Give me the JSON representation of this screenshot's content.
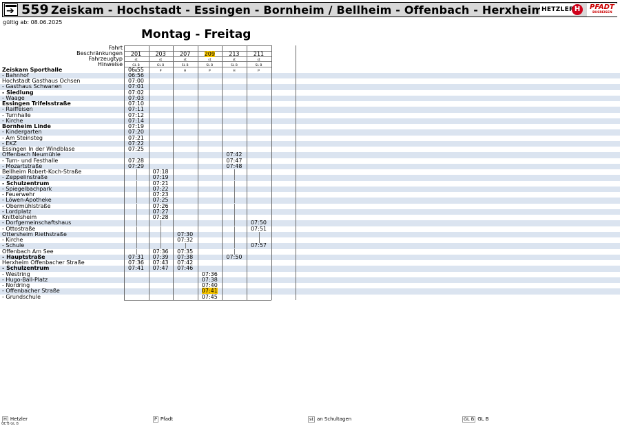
{
  "header": {
    "bus_icon": "bus-arrow-icon",
    "line_number": "559",
    "route": "Zeiskam - Hochstadt - Essingen - Bornheim / Bellheim - Offenbach - Herxheim",
    "logo_hetzler": "HETZLER",
    "logo_h": "H",
    "logo_pfadt": "PFADT",
    "logo_pfadt_sub": "BUSREISEN"
  },
  "valid_from": "gültig ab: 08.06.2025",
  "day_title": "Montag - Freitag",
  "row_labels": {
    "trip": "Fahrt",
    "restrictions": "Beschränkungen",
    "vehicle": "Fahrzeugtyp",
    "notes": "Hinweise"
  },
  "trips": [
    {
      "number": "201",
      "restriction": "st",
      "vehicle": "GL B",
      "note": "H",
      "highlight": false
    },
    {
      "number": "203",
      "restriction": "st",
      "vehicle": "GL B",
      "note": "P",
      "highlight": false
    },
    {
      "number": "207",
      "restriction": "st",
      "vehicle": "SL B",
      "note": "H",
      "highlight": false
    },
    {
      "number": "209",
      "restriction": "st",
      "vehicle": "SL B",
      "note": "P",
      "highlight": true
    },
    {
      "number": "213",
      "restriction": "st",
      "vehicle": "SL B",
      "note": "H",
      "highlight": false
    },
    {
      "number": "211",
      "restriction": "st",
      "vehicle": "SL B",
      "note": "P",
      "highlight": false
    }
  ],
  "stops": [
    {
      "name": "Zeiskam Sporthalle",
      "bold": true,
      "times": [
        "06:55",
        "",
        "",
        "",
        "",
        ""
      ]
    },
    {
      "name": "- Bahnhof",
      "bold": false,
      "times": [
        "06:56",
        "",
        "",
        "",
        "",
        ""
      ]
    },
    {
      "name": "Hochstadt Gasthaus Ochsen",
      "bold": false,
      "times": [
        "07:00",
        "",
        "",
        "",
        "",
        ""
      ]
    },
    {
      "name": "- Gasthaus Schwanen",
      "bold": false,
      "times": [
        "07:01",
        "",
        "",
        "",
        "",
        ""
      ]
    },
    {
      "name": "- Siedlung",
      "bold": true,
      "times": [
        "07:02",
        "",
        "",
        "",
        "",
        ""
      ]
    },
    {
      "name": "- Waage",
      "bold": false,
      "times": [
        "07:03",
        "",
        "",
        "",
        "",
        ""
      ]
    },
    {
      "name": "Essingen Trifelsstraße",
      "bold": true,
      "times": [
        "07:10",
        "",
        "",
        "",
        "",
        ""
      ]
    },
    {
      "name": "- Raiffeisen",
      "bold": false,
      "times": [
        "07:11",
        "",
        "",
        "",
        "",
        ""
      ]
    },
    {
      "name": "- Turnhalle",
      "bold": false,
      "times": [
        "07:12",
        "",
        "",
        "",
        "",
        ""
      ]
    },
    {
      "name": "- Kirche",
      "bold": false,
      "times": [
        "07:14",
        "",
        "",
        "",
        "",
        ""
      ]
    },
    {
      "name": "Bornheim Linde",
      "bold": true,
      "times": [
        "07:19",
        "",
        "",
        "",
        "",
        ""
      ]
    },
    {
      "name": "- Kindergarten",
      "bold": false,
      "times": [
        "07:20",
        "",
        "",
        "",
        "",
        ""
      ]
    },
    {
      "name": "- Am Steinsteg",
      "bold": false,
      "times": [
        "07:21",
        "",
        "",
        "",
        "",
        ""
      ]
    },
    {
      "name": "- EKZ",
      "bold": false,
      "times": [
        "07:22",
        "",
        "",
        "",
        "",
        ""
      ]
    },
    {
      "name": "Essingen In der Windblase",
      "bold": false,
      "times": [
        "07:25",
        "",
        "",
        "",
        "",
        ""
      ]
    },
    {
      "name": "Offenbach Neumühle",
      "bold": false,
      "times": [
        "",
        "",
        "",
        "",
        "07:42",
        ""
      ]
    },
    {
      "name": "- Turn- und Festhalle",
      "bold": false,
      "times": [
        "07:28",
        "",
        "",
        "",
        "07:47",
        ""
      ]
    },
    {
      "name": "- Mozartstraße",
      "bold": false,
      "times": [
        "07:29",
        "",
        "",
        "",
        "07:48",
        ""
      ]
    },
    {
      "name": "Bellheim Robert-Koch-Straße",
      "bold": false,
      "times": [
        "|",
        "07:18",
        "",
        "",
        "|",
        ""
      ]
    },
    {
      "name": "- Zeppelinstraße",
      "bold": false,
      "times": [
        "|",
        "07:19",
        "",
        "",
        "|",
        ""
      ]
    },
    {
      "name": "- Schulzentrum",
      "bold": true,
      "times": [
        "|",
        "07:21",
        "",
        "",
        "|",
        ""
      ]
    },
    {
      "name": "- Spiegelbachpark",
      "bold": false,
      "times": [
        "|",
        "07:22",
        "",
        "",
        "|",
        ""
      ]
    },
    {
      "name": "- Feuerwehr",
      "bold": false,
      "times": [
        "|",
        "07:23",
        "",
        "",
        "|",
        ""
      ]
    },
    {
      "name": "- Löwen-Apotheke",
      "bold": false,
      "times": [
        "|",
        "07:25",
        "",
        "",
        "|",
        ""
      ]
    },
    {
      "name": "- Obermühlstraße",
      "bold": false,
      "times": [
        "|",
        "07:26",
        "",
        "",
        "|",
        ""
      ]
    },
    {
      "name": "- Lordplatz",
      "bold": false,
      "times": [
        "|",
        "07:27",
        "",
        "",
        "|",
        ""
      ]
    },
    {
      "name": "Knittelsheim",
      "bold": false,
      "times": [
        "|",
        "07:28",
        "",
        "",
        "|",
        ""
      ]
    },
    {
      "name": "- Dorfgemeinschaftshaus",
      "bold": false,
      "times": [
        "|",
        "|",
        "",
        "",
        "|",
        "07:50"
      ]
    },
    {
      "name": "- Ottostraße",
      "bold": false,
      "times": [
        "|",
        "|",
        "",
        "",
        "|",
        "07:51"
      ]
    },
    {
      "name": "Ottersheim Riethstraße",
      "bold": false,
      "times": [
        "|",
        "|",
        "07:30",
        "",
        "|",
        "|"
      ]
    },
    {
      "name": "- Kirche",
      "bold": false,
      "times": [
        "|",
        "|",
        "07:32",
        "",
        "|",
        "|"
      ]
    },
    {
      "name": "- Schule",
      "bold": false,
      "times": [
        "|",
        "|",
        "|",
        "",
        "|",
        "07:57"
      ]
    },
    {
      "name": "Offenbach Am See",
      "bold": false,
      "times": [
        "|",
        "07:36",
        "07:35",
        "",
        "|",
        ""
      ]
    },
    {
      "name": "- Hauptstraße",
      "bold": true,
      "times": [
        "07:31",
        "07:39",
        "07:38",
        "",
        "07:50",
        ""
      ]
    },
    {
      "name": "Herxheim Offenbacher Straße",
      "bold": false,
      "times": [
        "07:36",
        "07:43",
        "07:42",
        "",
        "",
        ""
      ]
    },
    {
      "name": "- Schulzentrum",
      "bold": true,
      "times": [
        "07:41",
        "07:47",
        "07:46",
        "",
        "",
        ""
      ]
    },
    {
      "name": "- Westring",
      "bold": false,
      "times": [
        "",
        "",
        "",
        "07:36",
        "",
        ""
      ]
    },
    {
      "name": "- Hugo-Ball-Platz",
      "bold": false,
      "times": [
        "",
        "",
        "",
        "07:38",
        "",
        ""
      ]
    },
    {
      "name": "- Nordring",
      "bold": false,
      "times": [
        "",
        "",
        "",
        "07:40",
        "",
        ""
      ]
    },
    {
      "name": "- Offenbacher Straße",
      "bold": false,
      "times": [
        "",
        "",
        "",
        "07:41",
        "",
        ""
      ],
      "highlight_col": 3
    },
    {
      "name": "- Grundschule",
      "bold": false,
      "times": [
        "",
        "",
        "",
        "07:45",
        "",
        ""
      ]
    }
  ],
  "legend": [
    {
      "key": "H",
      "text": "Hetzler"
    },
    {
      "key": "P",
      "text": "Pfadt"
    },
    {
      "key": "st",
      "text": "an Schultagen"
    },
    {
      "key": "GL B",
      "text": "GL B"
    }
  ],
  "legend_extra": "GL B  GL B"
}
